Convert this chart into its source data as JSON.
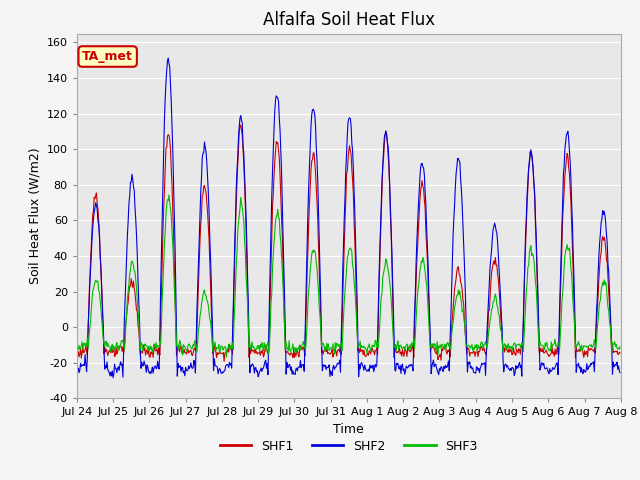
{
  "title": "Alfalfa Soil Heat Flux",
  "ylabel": "Soil Heat Flux (W/m2)",
  "xlabel": "Time",
  "ylim": [
    -40,
    165
  ],
  "yticks": [
    -40,
    -20,
    0,
    20,
    40,
    60,
    80,
    100,
    120,
    140,
    160
  ],
  "xtick_labels": [
    "Jul 24",
    "Jul 25",
    "Jul 26",
    "Jul 27",
    "Jul 28",
    "Jul 29",
    "Jul 30",
    "Jul 31",
    "Aug 1",
    "Aug 2",
    "Aug 3",
    "Aug 4",
    "Aug 5",
    "Aug 6",
    "Aug 7",
    "Aug 8"
  ],
  "legend_labels": [
    "SHF1",
    "SHF2",
    "SHF3"
  ],
  "line_colors": [
    "#cc0000",
    "#0000dd",
    "#00bb00"
  ],
  "tag_label": "TA_met",
  "tag_color": "#cc0000",
  "tag_bg": "#ffffc0",
  "bg_color": "#e8e8e8",
  "grid_color": "#ffffff",
  "title_fontsize": 12,
  "axis_fontsize": 9,
  "tick_fontsize": 8,
  "peaks_shf1": [
    75,
    26,
    109,
    80,
    113,
    104,
    97,
    101,
    109,
    80,
    32,
    38,
    98,
    96,
    50
  ],
  "peaks_shf2": [
    68,
    84,
    151,
    102,
    118,
    132,
    123,
    118,
    110,
    93,
    95,
    57,
    98,
    110,
    65
  ],
  "peaks_shf3": [
    26,
    37,
    74,
    19,
    69,
    65,
    45,
    45,
    37,
    38,
    20,
    16,
    45,
    46,
    25
  ],
  "valley_shf1": -15,
  "valley_shf2": -25,
  "valley_shf3": -12
}
